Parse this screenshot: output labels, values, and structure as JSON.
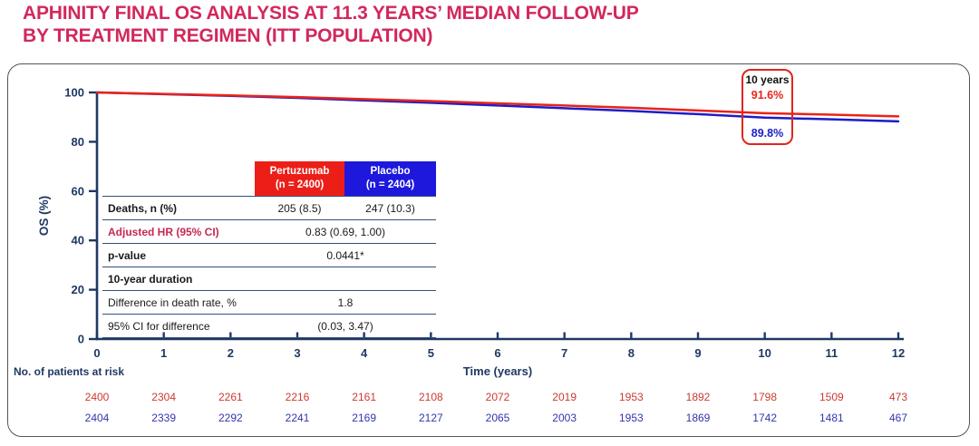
{
  "title": {
    "line1": "APHINITY FINAL OS ANALYSIS AT 11.3 YEARS’ MEDIAN FOLLOW-UP",
    "line2": "BY TREATMENT REGIMEN (ITT POPULATION)"
  },
  "colors": {
    "title_pink": "#D2285C",
    "pertuzumab_red": "#E8231B",
    "placebo_blue": "#1D1DC8",
    "header_red_bg": "#EC1F18",
    "header_blue_bg": "#1D18DC",
    "axis_navy": "#1F3864",
    "table_line_navy": "#33507A",
    "hr_label_red": "#C52A52",
    "callout_border_red": "#E0261C",
    "at_risk_red": "#CB3A31",
    "at_risk_blue": "#3434B0"
  },
  "chart_data": {
    "type": "line",
    "title": "Kaplan-Meier overall survival by treatment regimen",
    "x": [
      0,
      1,
      2,
      3,
      4,
      5,
      6,
      7,
      8,
      9,
      10,
      11,
      12
    ],
    "x_ticks": [
      "0",
      "1",
      "2",
      "3",
      "4",
      "5",
      "6",
      "7",
      "8",
      "9",
      "10",
      "11",
      "12"
    ],
    "y_ticks": [
      "0",
      "20",
      "40",
      "60",
      "80",
      "100"
    ],
    "series": [
      {
        "name": "Pertuzumab",
        "color": "#E8231B",
        "values": [
          100,
          99.4,
          98.8,
          98.1,
          97.3,
          96.5,
          95.6,
          94.7,
          93.8,
          92.7,
          91.6,
          91.0,
          90.3
        ]
      },
      {
        "name": "Placebo",
        "color": "#1D1DC8",
        "values": [
          100,
          99.3,
          98.6,
          97.8,
          96.8,
          95.8,
          94.7,
          93.6,
          92.5,
          91.2,
          89.8,
          89.1,
          88.3
        ]
      }
    ],
    "xlabel": "Time (years)",
    "ylabel": "OS (%)",
    "xlim": [
      0,
      12
    ],
    "ylim": [
      0,
      100
    ],
    "grid": "off",
    "legend_position": "none (table inset + callout labels)"
  },
  "callout": {
    "time": "10 years",
    "values": [
      {
        "group": "Pertuzumab",
        "label": "91.6%",
        "color": "#E8231B"
      },
      {
        "group": "Placebo",
        "label": "89.8%",
        "color": "#1D1DC8"
      }
    ]
  },
  "stats_table": {
    "columns": [
      {
        "name": "Pertuzumab",
        "n": "(n = 2400)",
        "bg": "#EC1F18"
      },
      {
        "name": "Placebo",
        "n": "(n = 2404)",
        "bg": "#1D18DC"
      }
    ],
    "rows": [
      {
        "label": "Deaths, n (%)",
        "bold": true,
        "values": [
          "205 (8.5)",
          "247 (10.3)"
        ]
      },
      {
        "label": "Adjusted HR (95% CI)",
        "bold": true,
        "label_color": "#C52A52",
        "span": "0.83 (0.69, 1.00)"
      },
      {
        "label": "p-value",
        "bold": true,
        "span": "0.0441*"
      },
      {
        "label": "10-year duration",
        "bold": true
      },
      {
        "label": "Difference in death rate, %",
        "bold": false,
        "span": "1.8"
      },
      {
        "label": "95% CI for difference",
        "bold": false,
        "span": "(0.03, 3.47)"
      }
    ]
  },
  "at_risk": {
    "label": "No. of patients at risk",
    "groups": [
      {
        "name": "Pertuzumab",
        "color": "#CB3A31",
        "counts": [
          "2400",
          "2304",
          "2261",
          "2216",
          "2161",
          "2108",
          "2072",
          "2019",
          "1953",
          "1892",
          "1798",
          "1509",
          "473"
        ]
      },
      {
        "name": "Placebo",
        "color": "#3434B0",
        "counts": [
          "2404",
          "2339",
          "2292",
          "2241",
          "2169",
          "2127",
          "2065",
          "2003",
          "1953",
          "1869",
          "1742",
          "1481",
          "467"
        ]
      }
    ]
  }
}
